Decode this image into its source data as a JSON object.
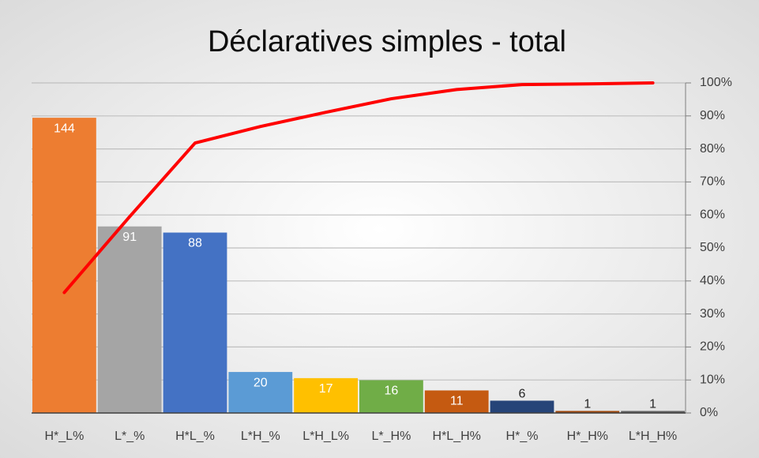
{
  "chart_data": {
    "type": "pareto",
    "title": "Déclaratives simples - total",
    "categories": [
      "H*_L%",
      "L*_%",
      "H*L_%",
      "L*H_%",
      "L*H_L%",
      "L*_H%",
      "H*L_H%",
      "H*_%",
      "H*_H%",
      "L*H_H%"
    ],
    "values": [
      144,
      91,
      88,
      20,
      17,
      16,
      11,
      6,
      1,
      1
    ],
    "colors": [
      "#ed7d31",
      "#a5a5a5",
      "#4472c4",
      "#5b9bd5",
      "#ffc000",
      "#70ad47",
      "#c55a11",
      "#264478",
      "#9e480e",
      "#636363"
    ],
    "ylim": [
      0,
      161
    ],
    "series": [
      {
        "color": "#ff0000",
        "axis": "y2",
        "values": [
          36.5,
          59.5,
          81.8,
          86.8,
          91.1,
          95.2,
          98.0,
          99.5,
          99.7,
          100
        ]
      }
    ],
    "y2lim": [
      0,
      100
    ],
    "y2ticks": [
      {
        "value": 0,
        "label": "0%"
      },
      {
        "value": 10,
        "label": "10%"
      },
      {
        "value": 20,
        "label": "20%"
      },
      {
        "value": 30,
        "label": "30%"
      },
      {
        "value": 40,
        "label": "40%"
      },
      {
        "value": 50,
        "label": "50%"
      },
      {
        "value": 60,
        "label": "60%"
      },
      {
        "value": 70,
        "label": "70%"
      },
      {
        "value": 80,
        "label": "80%"
      },
      {
        "value": 90,
        "label": "90%"
      },
      {
        "value": 100,
        "label": "100%"
      }
    ],
    "grid": true
  }
}
